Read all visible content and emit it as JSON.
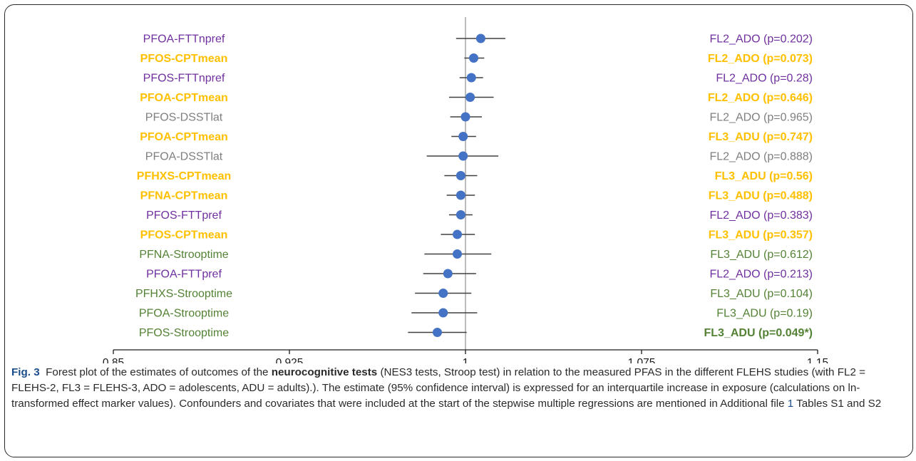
{
  "chart_data": {
    "type": "forest",
    "xlim": [
      0.85,
      1.15
    ],
    "ticks": [
      0.85,
      0.925,
      1,
      1.075,
      1.15
    ],
    "tick_labels": [
      "0.85",
      "0.925",
      "1",
      "1.075",
      "1.15"
    ],
    "reference_line": 1,
    "marker_color": "#4472c4",
    "rows": [
      {
        "label": "PFOA-FTTnpref",
        "right": "FL2_ADO (p=0.202)",
        "est": 1.0065,
        "lo": 0.996,
        "hi": 1.017,
        "color": "#7030a0",
        "bold": false
      },
      {
        "label": "PFOS-CPTmean",
        "right": "FL2_ADO (p=0.073)",
        "est": 1.0035,
        "lo": 0.9995,
        "hi": 1.008,
        "color": "#ffc000",
        "bold": true
      },
      {
        "label": "PFOS-FTTnpref",
        "right": "FL2_ADO (p=0.28)",
        "est": 1.0025,
        "lo": 0.9975,
        "hi": 1.0075,
        "color": "#7030a0",
        "bold": false
      },
      {
        "label": "PFOA-CPTmean",
        "right": "FL2_ADO (p=0.646)",
        "est": 1.002,
        "lo": 0.993,
        "hi": 1.012,
        "color": "#ffc000",
        "bold": true
      },
      {
        "label": "PFOS-DSSTlat",
        "right": "FL2_ADO (p=0.965)",
        "est": 1.0,
        "lo": 0.9935,
        "hi": 1.007,
        "color": "#7f7f7f",
        "bold": false
      },
      {
        "label": "PFOA-CPTmean",
        "right": "FL3_ADU (p=0.747)",
        "est": 0.999,
        "lo": 0.994,
        "hi": 1.0045,
        "color": "#ffc000",
        "bold": true
      },
      {
        "label": "PFOA-DSSTlat",
        "right": "FL2_ADO (p=0.888)",
        "est": 0.999,
        "lo": 0.9835,
        "hi": 1.014,
        "color": "#7f7f7f",
        "bold": false
      },
      {
        "label": "PFHXS-CPTmean",
        "right": "FL3_ADU (p=0.56)",
        "est": 0.998,
        "lo": 0.991,
        "hi": 1.005,
        "color": "#ffc000",
        "bold": true
      },
      {
        "label": "PFNA-CPTmean",
        "right": "FL3_ADU (p=0.488)",
        "est": 0.998,
        "lo": 0.992,
        "hi": 1.004,
        "color": "#ffc000",
        "bold": true
      },
      {
        "label": "PFOS-FTTpref",
        "right": "FL2_ADO (p=0.383)",
        "est": 0.998,
        "lo": 0.993,
        "hi": 1.003,
        "color": "#7030a0",
        "bold": false
      },
      {
        "label": "PFOS-CPTmean",
        "right": "FL3_ADU (p=0.357)",
        "est": 0.9965,
        "lo": 0.9895,
        "hi": 1.004,
        "color": "#ffc000",
        "bold": true
      },
      {
        "label": "PFNA-Strooptime",
        "right": "FL3_ADU (p=0.612)",
        "est": 0.9965,
        "lo": 0.9825,
        "hi": 1.011,
        "color": "#548235",
        "bold": false
      },
      {
        "label": "PFOA-FTTpref",
        "right": "FL2_ADO (p=0.213)",
        "est": 0.9925,
        "lo": 0.982,
        "hi": 1.0045,
        "color": "#7030a0",
        "bold": false
      },
      {
        "label": "PFHXS-Strooptime",
        "right": "FL3_ADU (p=0.104)",
        "est": 0.9905,
        "lo": 0.9785,
        "hi": 1.0025,
        "color": "#548235",
        "bold": false
      },
      {
        "label": "PFOA-Strooptime",
        "right": "FL3_ADU (p=0.19)",
        "est": 0.9905,
        "lo": 0.977,
        "hi": 1.005,
        "color": "#548235",
        "bold": false
      },
      {
        "label": "PFOS-Strooptime",
        "right": "FL3_ADU (p=0.049*)",
        "est": 0.988,
        "lo": 0.9755,
        "hi": 1.0005,
        "color": "#548235",
        "bold": false,
        "right_bold": true
      }
    ]
  },
  "caption": {
    "fig_label": "Fig. 3",
    "part1": "Forest plot of the estimates of outcomes of the ",
    "bold_term": "neurocognitive tests",
    "part2": " (NES3 tests, Stroop test) in relation to the measured PFAS in the different FLEHS studies (with FL2 = FLEHS-2, FL3 = FLEHS-3, ADO = adolescents, ADU = adults).). The estimate (95% confidence interval) is expressed for an interquartile increase in exposure (calculations on ln-transformed effect marker values). Confounders and covariates that were included at the start of the stepwise multiple regressions are mentioned in Additional file ",
    "ref": "1",
    "part3": " Tables S1 and S2"
  }
}
